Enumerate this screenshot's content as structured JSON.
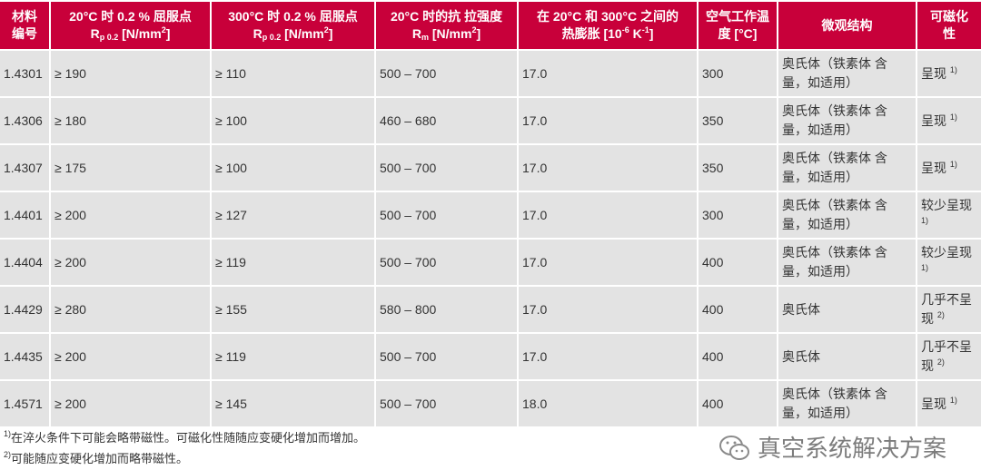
{
  "headers": [
    {
      "l1": "材料",
      "l2": "编号"
    },
    {
      "l1": "20°C 时 0.2 % 屈服点",
      "l2a": "R",
      "l2sub": "p 0.2",
      "l2b": " [N/mm",
      "l2sup": "2",
      "l2c": "]"
    },
    {
      "l1": "300°C 时 0.2 % 屈服点",
      "l2a": "R",
      "l2sub": "p 0.2",
      "l2b": " [N/mm",
      "l2sup": "2",
      "l2c": "]"
    },
    {
      "l1": "20°C 时的抗 拉强度",
      "l2a": "R",
      "l2sub": "m",
      "l2b": " [N/mm",
      "l2sup": "2",
      "l2c": "]"
    },
    {
      "l1": "在 20°C 和 300°C 之间的",
      "l2a": "热膨胀 [10",
      "l2sup": "-6",
      "l2b": " K",
      "l2sup2": "-1",
      "l2c": "]"
    },
    {
      "l1": "空气工作温",
      "l2": "度 [°C]"
    },
    {
      "l1": "微观结构"
    },
    {
      "l1": "可磁化",
      "l2": "性"
    }
  ],
  "rows": [
    {
      "id": "1.4301",
      "rp20": "≥ 190",
      "rp300": "≥ 110",
      "rm": "500 – 700",
      "exp": "17.0",
      "temp": "300",
      "micro": "奥氏体（铁素体 含量，如适用）",
      "mag": "呈现",
      "note": "1)"
    },
    {
      "id": "1.4306",
      "rp20": "≥ 180",
      "rp300": "≥ 100",
      "rm": "460 – 680",
      "exp": "17.0",
      "temp": "350",
      "micro": "奥氏体（铁素体 含量，如适用）",
      "mag": "呈现",
      "note": "1)"
    },
    {
      "id": "1.4307",
      "rp20": "≥ 175",
      "rp300": "≥ 100",
      "rm": "500 – 700",
      "exp": "17.0",
      "temp": "350",
      "micro": "奥氏体（铁素体 含量，如适用）",
      "mag": "呈现",
      "note": "1)"
    },
    {
      "id": "1.4401",
      "rp20": "≥ 200",
      "rp300": "≥ 127",
      "rm": "500 – 700",
      "exp": "17.0",
      "temp": "300",
      "micro": "奥氏体（铁素体 含量，如适用）",
      "mag": "较少呈现",
      "note": "1)"
    },
    {
      "id": "1.4404",
      "rp20": "≥ 200",
      "rp300": "≥ 119",
      "rm": "500 – 700",
      "exp": "17.0",
      "temp": "400",
      "micro": "奥氏体（铁素体 含量，如适用）",
      "mag": "较少呈现",
      "note": "1)"
    },
    {
      "id": "1.4429",
      "rp20": "≥ 280",
      "rp300": "≥ 155",
      "rm": "580 – 800",
      "exp": "17.0",
      "temp": "400",
      "micro": "奥氏体",
      "mag": "几乎不呈现",
      "note": "2)"
    },
    {
      "id": "1.4435",
      "rp20": "≥ 200",
      "rp300": "≥ 119",
      "rm": "500 – 700",
      "exp": "17.0",
      "temp": "400",
      "micro": "奥氏体",
      "mag": "几乎不呈现",
      "note": "2)"
    },
    {
      "id": "1.4571",
      "rp20": "≥ 200",
      "rp300": "≥ 145",
      "rm": "500 – 700",
      "exp": "18.0",
      "temp": "400",
      "micro": "奥氏体（铁素体 含量，如适用）",
      "mag": "呈现",
      "note": "1)"
    }
  ],
  "footnotes": [
    {
      "mark": "1)",
      "text": "在淬火条件下可能会略带磁性。可磁化性随随应变硬化增加而增加。"
    },
    {
      "mark": "2)",
      "text": "可能随应变硬化增加而略带磁性。"
    }
  ],
  "watermark": {
    "icon": "wechat-icon",
    "text": "真空系统解决方案"
  },
  "colors": {
    "header_bg": "#c8003a",
    "row_bg": "#e3e3e3"
  }
}
